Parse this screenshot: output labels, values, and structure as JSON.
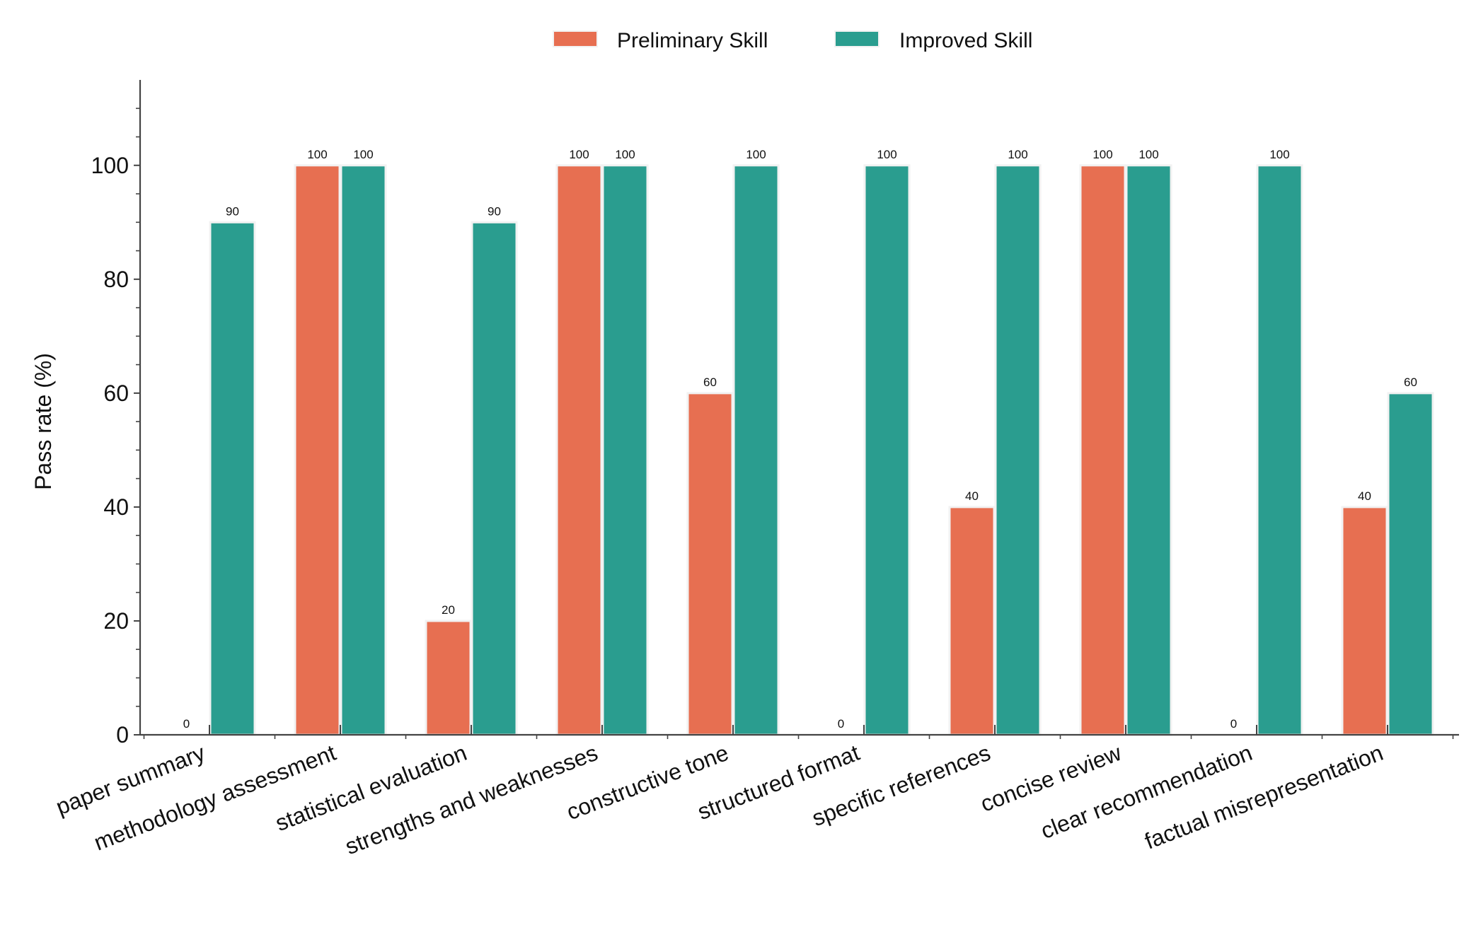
{
  "chart_data": {
    "type": "bar",
    "title": "",
    "xlabel": "",
    "ylabel": "Pass rate (%)",
    "ylim": [
      0,
      115
    ],
    "yticks": [
      0,
      20,
      40,
      60,
      80,
      100
    ],
    "grid": false,
    "legend_position": "top-center",
    "categories": [
      "paper summary",
      "methodology assessment",
      "statistical evaluation",
      "strengths and weaknesses",
      "constructive tone",
      "structured format",
      "specific references",
      "concise review",
      "clear recommendation",
      "factual misrepresentation"
    ],
    "series": [
      {
        "name": "Preliminary Skill",
        "color": "#e76f51",
        "values": [
          0,
          100,
          20,
          100,
          60,
          0,
          40,
          100,
          0,
          40
        ]
      },
      {
        "name": "Improved Skill",
        "color": "#2a9d8f",
        "values": [
          90,
          100,
          90,
          100,
          100,
          100,
          100,
          100,
          100,
          60
        ]
      }
    ]
  }
}
